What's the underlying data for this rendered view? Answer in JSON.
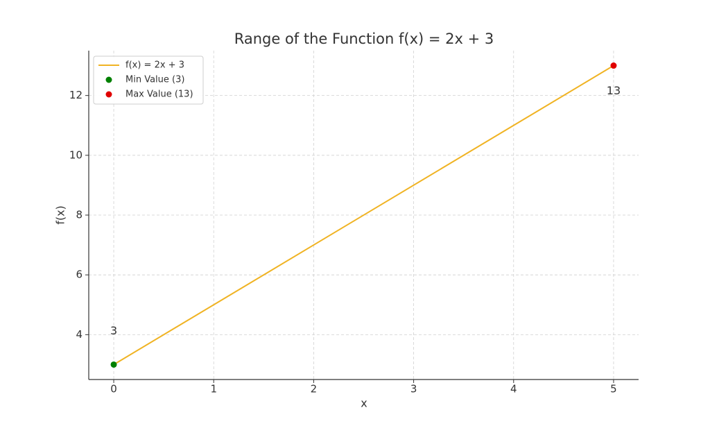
{
  "chart_data": {
    "type": "line",
    "title": "Range of the Function f(x) = 2x + 3",
    "xlabel": "x",
    "ylabel": "f(x)",
    "series": [
      {
        "name": "f(x) = 2x + 3",
        "type": "line",
        "color": "#f0b323",
        "x": [
          0,
          5
        ],
        "values": [
          3,
          13
        ]
      },
      {
        "name": "Min Value (3)",
        "type": "scatter",
        "color": "#008000",
        "x": [
          0
        ],
        "values": [
          3
        ]
      },
      {
        "name": "Max Value (13)",
        "type": "scatter",
        "color": "#e00000",
        "x": [
          5
        ],
        "values": [
          13
        ]
      }
    ],
    "xlim": [
      -0.25,
      5.25
    ],
    "xticks": [
      0,
      1,
      2,
      3,
      4,
      5
    ],
    "ylim": [
      2.5,
      13.5
    ],
    "yticks": [
      4,
      6,
      8,
      10,
      12
    ],
    "grid": true,
    "legend": "upper left"
  }
}
